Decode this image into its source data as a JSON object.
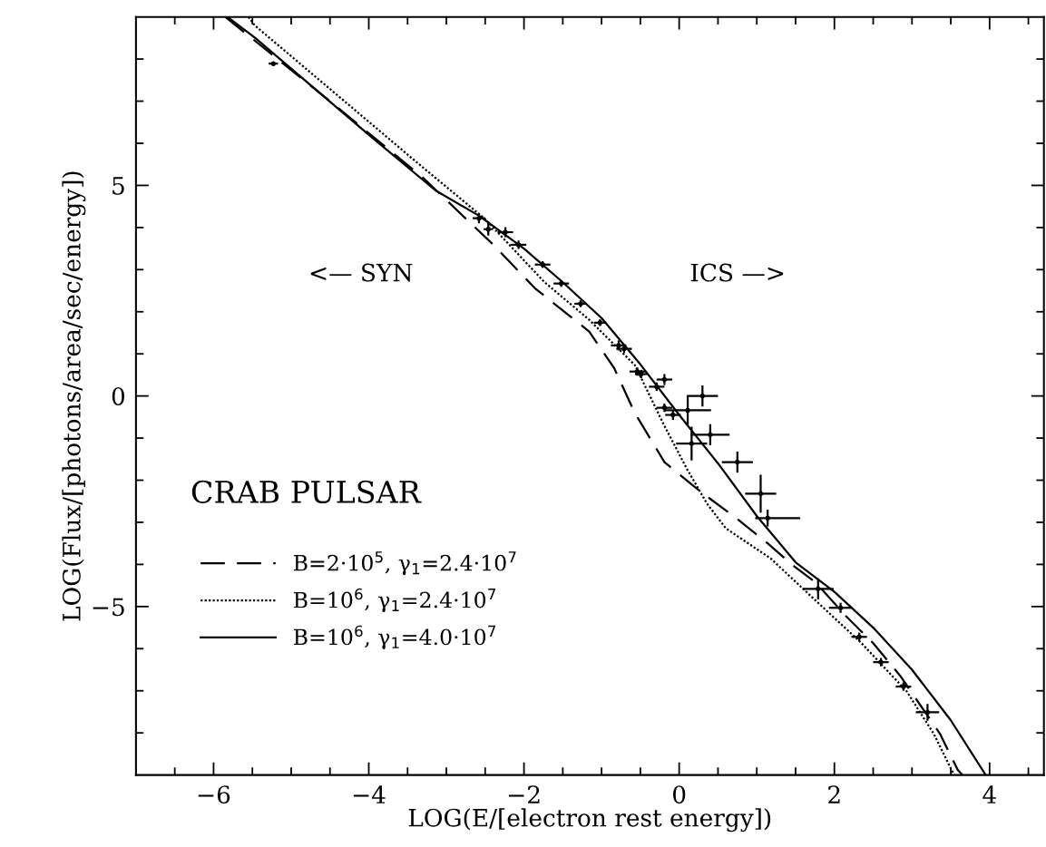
{
  "chart_data": {
    "type": "line",
    "xlabel": "LOG(E/[electron rest energy])",
    "ylabel": "LOG(Flux/[photons/area/sec/energy])",
    "xlim": [
      -7,
      4.7
    ],
    "ylim": [
      -9,
      9
    ],
    "xticks": [
      {
        "value": -6.5,
        "label": null
      },
      {
        "value": -6,
        "label": "−6"
      },
      {
        "value": -5.5,
        "label": null
      },
      {
        "value": -5,
        "label": null
      },
      {
        "value": -4.5,
        "label": null
      },
      {
        "value": -4,
        "label": "−4"
      },
      {
        "value": -3.5,
        "label": null
      },
      {
        "value": -3,
        "label": null
      },
      {
        "value": -2.5,
        "label": null
      },
      {
        "value": -2,
        "label": "−2"
      },
      {
        "value": -1.5,
        "label": null
      },
      {
        "value": -1,
        "label": null
      },
      {
        "value": -0.5,
        "label": null
      },
      0,
      {
        "value": 0.5,
        "label": null
      },
      {
        "value": 1,
        "label": null
      },
      {
        "value": 1.5,
        "label": null
      },
      2,
      {
        "value": 2.5,
        "label": null
      },
      {
        "value": 3,
        "label": null
      },
      {
        "value": 3.5,
        "label": null
      },
      4,
      {
        "value": 4.5,
        "label": null
      }
    ],
    "yticks": [
      {
        "value": -8,
        "label": null
      },
      {
        "value": -7,
        "label": null
      },
      {
        "value": -6,
        "label": null
      },
      {
        "value": -5,
        "label": "−5"
      },
      {
        "value": -4,
        "label": null
      },
      {
        "value": -3,
        "label": null
      },
      {
        "value": -2,
        "label": null
      },
      {
        "value": -1,
        "label": null
      },
      0,
      {
        "value": 1,
        "label": null
      },
      {
        "value": 2,
        "label": null
      },
      {
        "value": 3,
        "label": null
      },
      {
        "value": 4,
        "label": null
      },
      5,
      {
        "value": 6,
        "label": null
      },
      {
        "value": 7,
        "label": null
      },
      {
        "value": 8,
        "label": null
      }
    ],
    "grid": false,
    "legend": "bottom left",
    "annotations": [
      "<— SYN",
      "ICS —>",
      "CRAB PULSAR"
    ],
    "series": [
      {
        "name": "B=2·10$^{5}$, γ$_{1}$=2.4·10$^{7}$",
        "color": "#000000",
        "line_style": "dashed",
        "marker": "none",
        "x": [
          -5.85,
          -4.5,
          -3.3,
          -2.8,
          -2.4,
          -1.86,
          -1.16,
          -0.84,
          -0.57,
          -0.19,
          0.28,
          0.75,
          1.14,
          1.45,
          1.76,
          2.15,
          2.5,
          2.85,
          3.36,
          3.59,
          3.65
        ],
        "values": [
          9,
          7.0,
          5.18,
          4.3,
          3.6,
          2.56,
          1.53,
          0.67,
          -0.41,
          -1.57,
          -2.28,
          -2.92,
          -3.5,
          -4.0,
          -4.43,
          -5.23,
          -5.87,
          -6.65,
          -8.02,
          -8.88,
          -9
        ]
      },
      {
        "name": "B=10$^{6}$, γ$_{1}$=2.4·10$^{7}$",
        "color": "#000000",
        "line_style": "dotted",
        "marker": "none",
        "x": [
          -5.55,
          -5.47,
          -3.37,
          -2.5,
          -1.74,
          -1.16,
          -0.57,
          -0.19,
          0.09,
          0.36,
          0.6,
          1.18,
          1.76,
          2.35,
          2.93,
          3.28,
          3.51,
          3.55
        ],
        "values": [
          9,
          8.8,
          5.53,
          4.2,
          2.71,
          1.81,
          0.73,
          -0.71,
          -1.7,
          -2.56,
          -3.14,
          -3.86,
          -4.86,
          -5.87,
          -7.01,
          -8.02,
          -8.88,
          -9
        ]
      },
      {
        "name": "B=10$^{6}$, γ$_{1}$=4.0·10$^{7}$",
        "color": "#000000",
        "line_style": "solid",
        "marker": "none",
        "x": [
          -5.82,
          -5.47,
          -4,
          -3.14,
          -2.58,
          -2,
          -1.5,
          -1,
          -0.5,
          0,
          0.5,
          1,
          1.5,
          2,
          2.5,
          3,
          3.5,
          3.95
        ],
        "values": [
          9,
          8.51,
          6.2,
          4.88,
          4.28,
          3.5,
          2.7,
          1.85,
          0.75,
          -0.45,
          -1.6,
          -2.85,
          -3.95,
          -4.65,
          -5.5,
          -6.5,
          -7.7,
          -9
        ]
      },
      {
        "type": "scatter",
        "color": "#000000",
        "marker": "circle",
        "x": [
          -5.23,
          -2.58,
          -2.46,
          -2.24,
          -2.07,
          -1.76,
          -1.52,
          -1.27,
          -1.02,
          -0.78,
          -0.71,
          -0.54,
          -0.49,
          -0.19,
          -0.29,
          -0.19,
          -0.08,
          0.11,
          0.3,
          0.16,
          0.4,
          0.75,
          1.05,
          1.14,
          1.79,
          2.08,
          2.32,
          2.6,
          2.89,
          3.2
        ],
        "values": [
          7.89,
          4.22,
          3.96,
          3.89,
          3.59,
          3.12,
          2.67,
          2.19,
          1.74,
          1.2,
          1.12,
          0.58,
          0.52,
          0.39,
          0.22,
          -0.28,
          -0.45,
          -0.34,
          0.0,
          -1.13,
          -0.92,
          -1.57,
          -2.32,
          -2.9,
          -4.58,
          -5.03,
          -5.72,
          -6.32,
          -6.9,
          -7.51
        ],
        "errors": [
          0.05,
          0.12,
          0.15,
          0.12,
          0.1,
          0.08,
          0.08,
          0.08,
          0.08,
          0.12,
          0.1,
          0.1,
          0.1,
          0.13,
          0.1,
          0.1,
          0.12,
          0.35,
          0.25,
          0.4,
          0.25,
          0.25,
          0.45,
          0.2,
          0.25,
          0.12,
          0.1,
          0.1,
          0.1,
          0.2
        ],
        "xerrors": [
          0.06,
          0.08,
          0.06,
          0.1,
          0.1,
          0.1,
          0.1,
          0.08,
          0.08,
          0.1,
          0.1,
          0.1,
          0.08,
          0.1,
          0.1,
          0.1,
          0.1,
          0.3,
          0.2,
          0.2,
          0.25,
          0.2,
          0.2,
          [
            0.98,
            1.56
          ],
          0.2,
          0.15,
          0.1,
          0.1,
          0.1,
          0.15
        ]
      }
    ]
  }
}
